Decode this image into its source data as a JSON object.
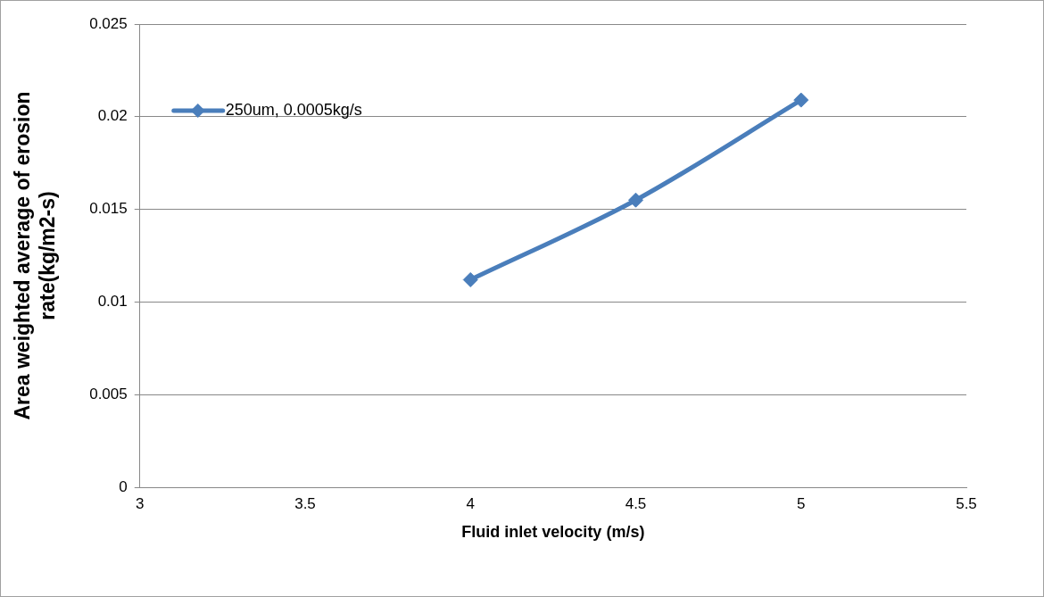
{
  "chart_data": {
    "type": "line",
    "xlabel": "Fluid inlet velocity (m/s)",
    "ylabel": "Area weighted average of erosion rate(kg/m2-s)",
    "x": [
      4,
      4.5,
      5
    ],
    "series": [
      {
        "name": "250um, 0.0005kg/s",
        "color": "#4a7ebb",
        "values": [
          0.0112,
          0.0155,
          0.0209
        ]
      }
    ],
    "xlim": [
      3,
      5.5
    ],
    "xticks": [
      3,
      3.5,
      4,
      4.5,
      5,
      5.5
    ],
    "ylim": [
      0,
      0.025
    ],
    "yticks": [
      0,
      0.005,
      0.01,
      0.015,
      0.02,
      0.025
    ],
    "grid": "y",
    "legend": "top left",
    "marker": "diamond",
    "line_style": "solid"
  }
}
